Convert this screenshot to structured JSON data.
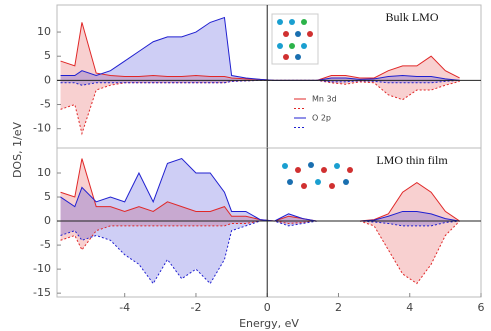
{
  "chart_data": [
    {
      "type": "area",
      "annotation": "Bulk LMO",
      "x": [
        -5.8,
        -5.4,
        -5.2,
        -4.8,
        -4.4,
        -4.0,
        -3.6,
        -3.2,
        -2.8,
        -2.4,
        -2.0,
        -1.6,
        -1.2,
        -1.0,
        -0.6,
        -0.2,
        0.2,
        0.6,
        1.0,
        1.4,
        1.8,
        2.2,
        2.6,
        3.0,
        3.4,
        3.8,
        4.2,
        4.6,
        5.0,
        5.4
      ],
      "xlim": [
        -5.9,
        6
      ],
      "ylim": [
        -14,
        15.6
      ],
      "yticks": [
        -10,
        -5,
        0,
        5,
        10
      ],
      "series": [
        {
          "name": "Mn 3d",
          "color": "#e02828",
          "values": [
            4,
            3,
            12,
            1.5,
            1,
            0.8,
            0.8,
            1,
            0.8,
            0.8,
            1,
            0.8,
            0.8,
            0.5,
            0.3,
            0.2,
            0,
            0,
            0,
            0,
            1,
            1,
            0.5,
            0.5,
            2,
            3,
            3,
            5,
            2,
            0.5
          ]
        },
        {
          "color": "#e02828",
          "values": [
            -6,
            -5,
            -11,
            -2,
            -1,
            -0.5,
            -0.5,
            -0.5,
            -0.5,
            -0.5,
            -0.5,
            -0.5,
            -0.5,
            -0.2,
            -0.1,
            0,
            0,
            0,
            0,
            0,
            -0.5,
            -0.8,
            -0.3,
            -0.5,
            -3,
            -4,
            -2,
            -2,
            -1,
            -0.2
          ]
        },
        {
          "name": "O 2p",
          "color": "#2020d0",
          "values": [
            1,
            1,
            2,
            1,
            2,
            4,
            6,
            8,
            9,
            9,
            10,
            12,
            13,
            1,
            0.5,
            0.2,
            0,
            0,
            0,
            0,
            0.5,
            0.5,
            0.2,
            0.3,
            0.8,
            1,
            0.8,
            0.8,
            0.3,
            0
          ]
        },
        {
          "color": "#2020d0",
          "values": [
            -0.5,
            -0.5,
            -1,
            -0.5,
            -0.5,
            -0.5,
            -0.5,
            -0.5,
            -0.5,
            -0.5,
            -0.5,
            -0.5,
            -0.5,
            -0.2,
            -0.1,
            0,
            0,
            0,
            0,
            0,
            -0.3,
            -0.3,
            -0.1,
            -0.2,
            -0.5,
            -0.5,
            -0.5,
            -0.5,
            -0.2,
            0
          ]
        }
      ]
    },
    {
      "type": "area",
      "annotation": "LMO thin film",
      "xlabel": "Energy, eV",
      "ylabel": "DOS, 1/eV",
      "x": [
        -5.8,
        -5.4,
        -5.2,
        -4.8,
        -4.4,
        -4.0,
        -3.6,
        -3.2,
        -2.8,
        -2.4,
        -2.0,
        -1.6,
        -1.2,
        -1.0,
        -0.6,
        -0.2,
        0.2,
        0.6,
        1.0,
        1.4,
        1.8,
        2.2,
        2.6,
        3.0,
        3.4,
        3.8,
        4.2,
        4.6,
        5.0,
        5.4
      ],
      "xlim": [
        -5.9,
        6
      ],
      "xticks": [
        -4,
        -2,
        0,
        2,
        4,
        6
      ],
      "ylim": [
        -15.8,
        15.2
      ],
      "yticks": [
        -15,
        -10,
        -5,
        0,
        5,
        10
      ],
      "series": [
        {
          "color": "#e02828",
          "values": [
            6,
            5,
            13,
            3,
            3,
            2,
            3,
            2,
            4,
            3,
            2,
            2,
            3,
            1,
            1,
            0.3,
            0,
            1,
            0.5,
            0,
            0,
            0,
            0,
            0.3,
            1.5,
            6,
            8,
            6,
            2,
            0
          ]
        },
        {
          "color": "#e02828",
          "values": [
            -4,
            -3,
            -6,
            -2,
            -1,
            -1,
            -1,
            -1,
            -1,
            -1,
            -1,
            -1,
            -1,
            -0.5,
            -0.5,
            0,
            0,
            -0.5,
            -0.3,
            0,
            0,
            0,
            0,
            -1,
            -6,
            -11,
            -13,
            -9,
            -3,
            0
          ]
        },
        {
          "color": "#2020d0",
          "values": [
            5,
            3,
            7,
            4,
            5,
            4,
            10,
            4,
            12,
            13,
            10,
            10,
            6,
            2,
            2,
            0.3,
            0,
            1.5,
            0.5,
            0,
            0,
            0,
            0,
            0.2,
            1,
            2,
            2,
            1.5,
            0.5,
            0
          ]
        },
        {
          "color": "#2020d0",
          "values": [
            -3,
            -2,
            -4,
            -3,
            -4,
            -7,
            -9,
            -13,
            -8,
            -12,
            -10,
            -13,
            -8,
            -2,
            -1,
            0,
            0,
            -1,
            -0.5,
            0,
            0,
            0,
            0,
            -0.2,
            -0.5,
            -1,
            -1,
            -1,
            -0.3,
            0
          ]
        }
      ]
    }
  ]
}
